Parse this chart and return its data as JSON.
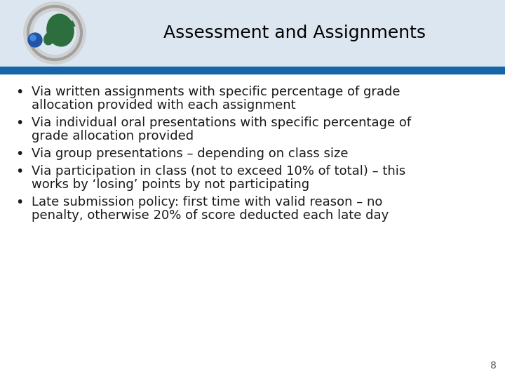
{
  "title": "Assessment and Assignments",
  "title_fontsize": 18,
  "title_color": "#000000",
  "header_bg_color": "#dce6f1",
  "header_bar_color": "#1565a8",
  "body_bg_color": "#ffffff",
  "page_number": "8",
  "bullet_points": [
    [
      "Via written assignments with specific percentage of grade",
      "allocation provided with each assignment"
    ],
    [
      "Via individual oral presentations with specific percentage of",
      "grade allocation provided"
    ],
    [
      "Via group presentations – depending on class size"
    ],
    [
      "Via participation in class (not to exceed 10% of total) – this",
      "works by ‘losing’ points by not participating"
    ],
    [
      "Late submission policy: first time with valid reason – no",
      "penalty, otherwise 20% of score deducted each late day"
    ]
  ],
  "bullet_fontsize": 13,
  "bullet_color": "#1a1a1a",
  "font_family": "DejaVu Sans"
}
